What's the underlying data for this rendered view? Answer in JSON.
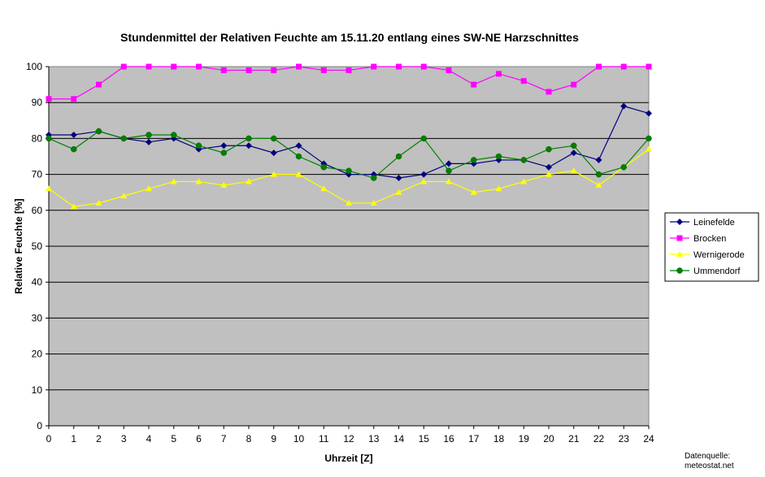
{
  "chart_data": {
    "type": "line",
    "title": "Stundenmittel der Relativen Feuchte am 15.11.20 entlang eines SW-NE Harzschnittes",
    "xlabel": "Uhrzeit [Z]",
    "ylabel": "Relative Feuchte  [%]",
    "x": [
      0,
      1,
      2,
      3,
      4,
      5,
      6,
      7,
      8,
      9,
      10,
      11,
      12,
      13,
      14,
      15,
      16,
      17,
      18,
      19,
      20,
      21,
      22,
      23,
      24
    ],
    "xlim": [
      0,
      24
    ],
    "ylim": [
      0,
      100
    ],
    "yticks": [
      0,
      10,
      20,
      30,
      40,
      50,
      60,
      70,
      80,
      90,
      100
    ],
    "grid": true,
    "plot_background": "#c0c0c0",
    "legend_position": "right",
    "series": [
      {
        "name": "Leinefelde",
        "color": "#000080",
        "marker": "diamond",
        "values": [
          81,
          81,
          82,
          80,
          79,
          80,
          77,
          78,
          78,
          76,
          78,
          73,
          70,
          70,
          69,
          70,
          73,
          73,
          74,
          74,
          72,
          76,
          74,
          89,
          87
        ]
      },
      {
        "name": "Brocken",
        "color": "#ff00ff",
        "marker": "square",
        "values": [
          91,
          91,
          95,
          100,
          100,
          100,
          100,
          99,
          99,
          99,
          100,
          99,
          99,
          100,
          100,
          100,
          99,
          95,
          98,
          96,
          93,
          95,
          100,
          100,
          100
        ]
      },
      {
        "name": "Wernigerode",
        "color": "#ffff00",
        "marker": "triangle",
        "values": [
          66,
          61,
          62,
          64,
          66,
          68,
          68,
          67,
          68,
          70,
          70,
          66,
          62,
          62,
          65,
          68,
          68,
          65,
          66,
          68,
          70,
          71,
          67,
          72,
          77
        ]
      },
      {
        "name": "Ummendorf",
        "color": "#008000",
        "marker": "circle",
        "values": [
          80,
          77,
          82,
          80,
          81,
          81,
          78,
          76,
          80,
          80,
          75,
          72,
          71,
          69,
          75,
          80,
          71,
          74,
          75,
          74,
          77,
          78,
          70,
          72,
          80
        ]
      }
    ]
  },
  "source": {
    "line1": "Datenquelle:",
    "line2": "meteostat.net"
  }
}
